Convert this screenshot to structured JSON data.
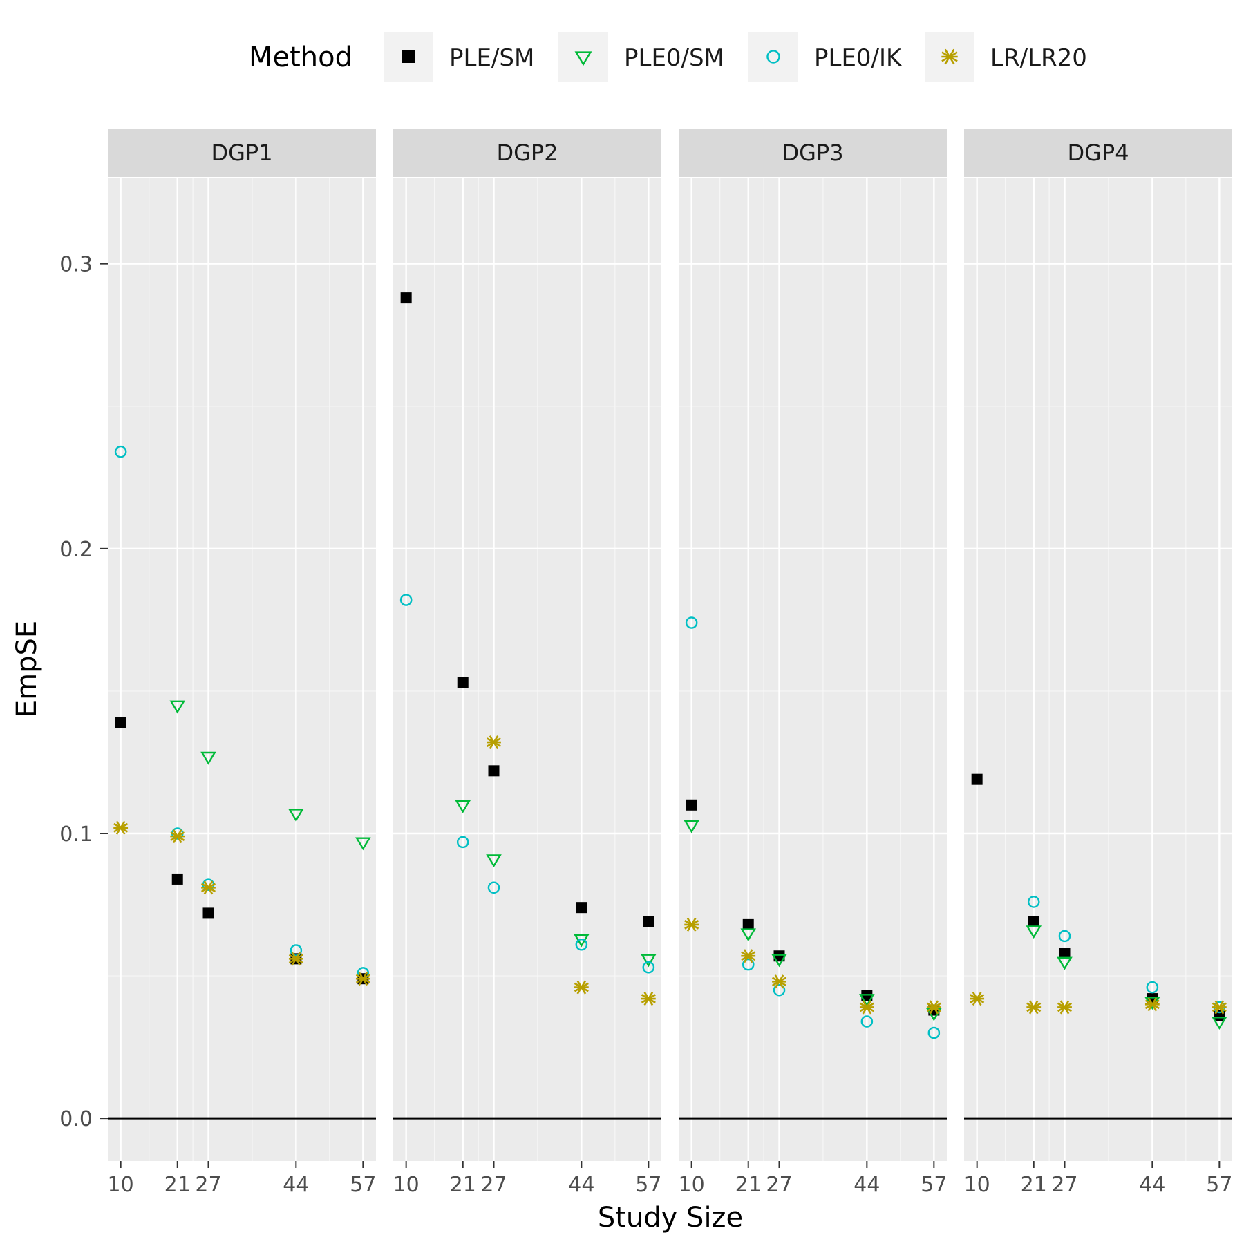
{
  "chart_data": {
    "type": "scatter",
    "xlabel": "Study Size",
    "ylabel": "EmpSE",
    "legend_title": "Method",
    "legend_position": "top",
    "x_ticks": [
      10,
      21,
      27,
      44,
      57
    ],
    "x_tick_labels": [
      "10",
      "21",
      "27",
      "44",
      "57"
    ],
    "y_ticks": [
      0.0,
      0.1,
      0.2,
      0.3
    ],
    "y_tick_labels": [
      "0.0",
      "0.1",
      "0.2",
      "0.3"
    ],
    "xlim": [
      7.5,
      59.5
    ],
    "ylim": [
      -0.015,
      0.33
    ],
    "hline": 0,
    "series": [
      {
        "name": "PLE/SM",
        "shape": "square",
        "color": "#000000"
      },
      {
        "name": "PLE0/SM",
        "shape": "triangle-down",
        "color": "#00BA38"
      },
      {
        "name": "PLE0/IK",
        "shape": "circle",
        "color": "#00BFC4"
      },
      {
        "name": "LR/LR20",
        "shape": "asterisk",
        "color": "#B79F00"
      }
    ],
    "panels": [
      {
        "name": "DGP1",
        "values": {
          "PLE/SM": [
            0.139,
            0.084,
            0.072,
            0.056,
            0.049
          ],
          "PLE0/SM": [
            null,
            0.145,
            0.127,
            0.107,
            0.097
          ],
          "PLE0/IK": [
            0.234,
            0.1,
            0.082,
            0.059,
            0.051
          ],
          "LR/LR20": [
            0.102,
            0.099,
            0.081,
            0.056,
            0.049
          ]
        }
      },
      {
        "name": "DGP2",
        "values": {
          "PLE/SM": [
            0.288,
            0.153,
            0.122,
            0.074,
            0.069
          ],
          "PLE0/SM": [
            null,
            0.11,
            0.091,
            0.063,
            0.056
          ],
          "PLE0/IK": [
            0.182,
            0.097,
            0.081,
            0.061,
            0.053
          ],
          "LR/LR20": [
            null,
            null,
            0.132,
            0.046,
            0.042
          ]
        }
      },
      {
        "name": "DGP3",
        "values": {
          "PLE/SM": [
            0.11,
            0.068,
            0.057,
            0.043,
            0.038
          ],
          "PLE0/SM": [
            0.103,
            0.065,
            0.056,
            0.042,
            0.037
          ],
          "PLE0/IK": [
            0.174,
            0.054,
            0.045,
            0.034,
            0.03
          ],
          "LR/LR20": [
            0.068,
            0.057,
            0.048,
            0.039,
            0.039
          ]
        }
      },
      {
        "name": "DGP4",
        "values": {
          "PLE/SM": [
            0.119,
            0.069,
            0.058,
            0.042,
            0.036
          ],
          "PLE0/SM": [
            null,
            0.066,
            0.055,
            0.041,
            0.034
          ],
          "PLE0/IK": [
            null,
            0.076,
            0.064,
            0.046,
            0.039
          ],
          "LR/LR20": [
            0.042,
            0.039,
            0.039,
            0.04,
            0.039
          ]
        }
      }
    ]
  }
}
